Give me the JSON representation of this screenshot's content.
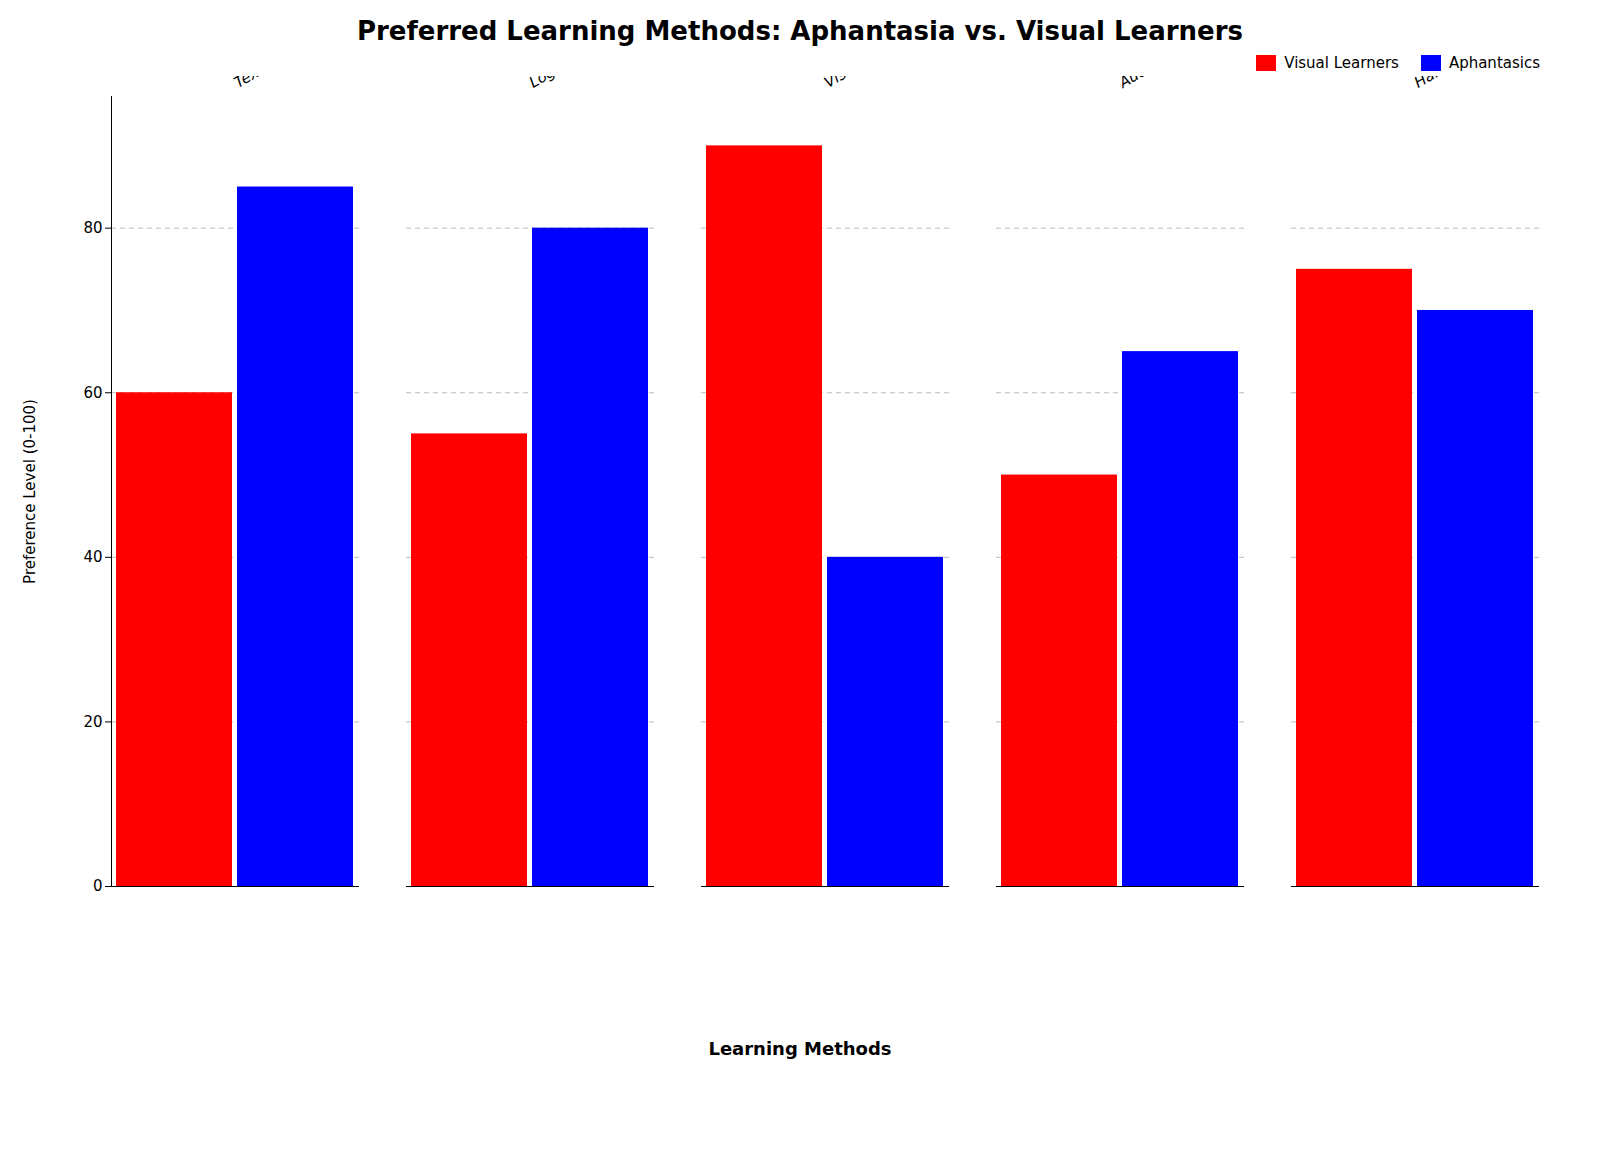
{
  "chart_data": {
    "type": "bar",
    "title": "Preferred Learning Methods: Aphantasia vs. Visual Learners",
    "xlabel": "Learning Methods",
    "ylabel": "Preference Level (0-100)",
    "categories": [
      "Text Descriptions",
      "Logical Sequences",
      "Visual Diagrams",
      "Auditory Learning",
      "Hands-on Practice"
    ],
    "series": [
      {
        "name": "Visual Learners",
        "color": "#ff0000",
        "values": [
          60,
          55,
          90,
          50,
          75
        ]
      },
      {
        "name": "Aphantasics",
        "color": "#0000ff",
        "values": [
          85,
          80,
          40,
          65,
          70
        ]
      }
    ],
    "ylim": [
      0,
      96
    ],
    "yticks": [
      0,
      20,
      40,
      60,
      80
    ],
    "grid": true,
    "legend": "upper right"
  }
}
